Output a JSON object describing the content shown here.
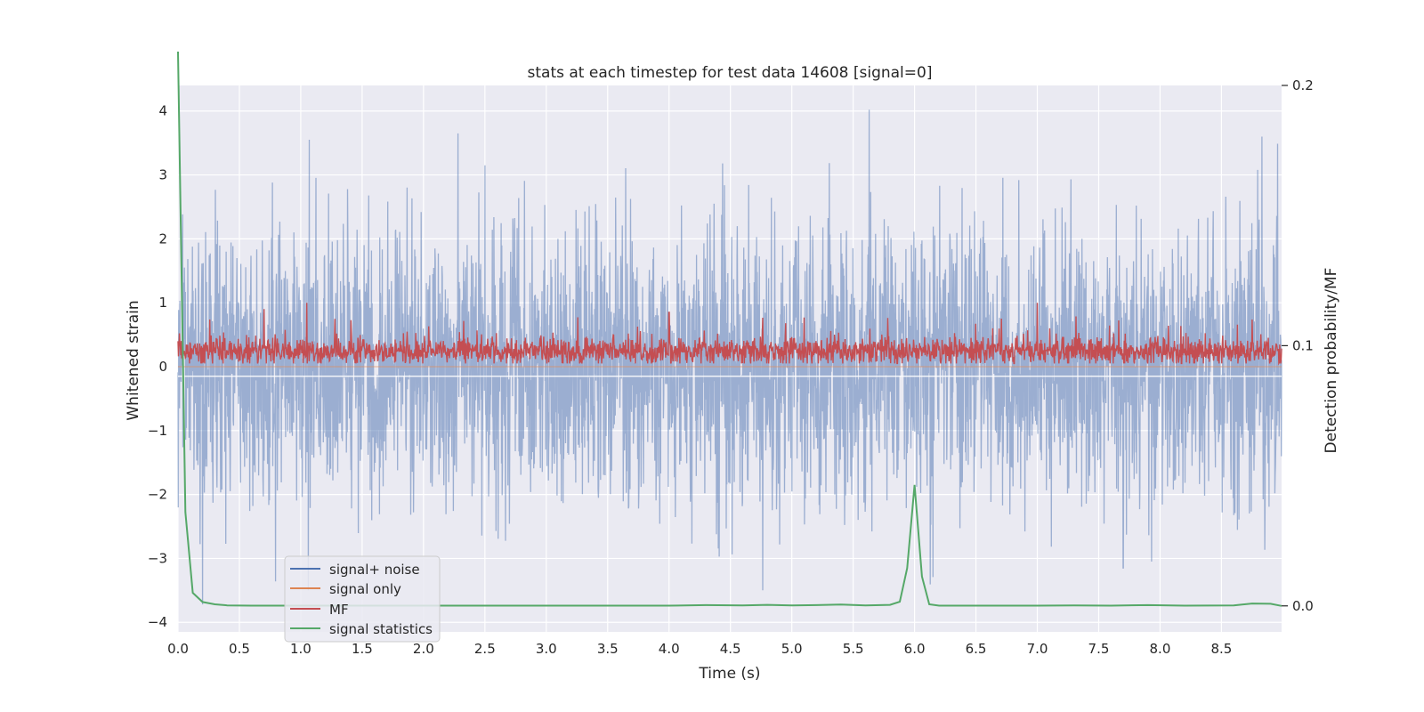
{
  "chart_data": {
    "type": "line",
    "title": "stats at each timestep for test data 14608 [signal=0]",
    "xlabel": "Time (s)",
    "ylabel_left": "Whitened strain",
    "ylabel_right": "Detection probability/MF",
    "xlim": [
      0.0,
      8.99
    ],
    "ylim_left": [
      -4.15,
      4.4
    ],
    "ylim_right": [
      -0.01,
      0.2
    ],
    "x_ticks": [
      "0.0",
      "0.5",
      "1.0",
      "1.5",
      "2.0",
      "2.5",
      "3.0",
      "3.5",
      "4.0",
      "4.5",
      "5.0",
      "5.5",
      "6.0",
      "6.5",
      "7.0",
      "7.5",
      "8.0",
      "8.5"
    ],
    "y_ticks_left": [
      "4",
      "3",
      "2",
      "1",
      "0",
      "−1",
      "−2",
      "−3",
      "−4"
    ],
    "y_ticks_right": [
      "0.2",
      "0.1",
      "0.0"
    ],
    "legend_position": "lower-left",
    "colors": {
      "plot_bg": "#eaeaf2",
      "grid": "#ffffff",
      "signal_noise": "#4c72b0",
      "signal_only": "#dd8452",
      "mf": "#c44e52",
      "stats": "#55a868"
    },
    "series": [
      {
        "name": "signal+ noise",
        "description_values": "whitened strain noise, approx. standard normal, range about -3.7 to 4.0",
        "peaks": [
          {
            "t": 1.07,
            "v": 3.55
          },
          {
            "t": 2.28,
            "v": 3.65
          },
          {
            "t": 2.5,
            "v": 3.15
          },
          {
            "t": 5.63,
            "v": 4.02
          },
          {
            "t": 8.83,
            "v": 3.6
          },
          {
            "t": 0.2,
            "v": -3.72
          },
          {
            "t": 7.7,
            "v": -3.15
          },
          {
            "t": 7.93,
            "v": -3.05
          }
        ]
      },
      {
        "name": "signal only",
        "values_note": "zero (no injected signal)"
      },
      {
        "name": "MF",
        "baseline_range": [
          0.05,
          0.5
        ],
        "peaks": [
          {
            "t": 0.7,
            "v": 0.9
          },
          {
            "t": 1.05,
            "v": 1.0
          },
          {
            "t": 4.0,
            "v": 0.85
          },
          {
            "t": 7.0,
            "v": 1.0
          }
        ]
      },
      {
        "name": "signal statistics",
        "axis": "right",
        "x": [
          0.0,
          0.06,
          0.12,
          0.2,
          0.3,
          0.4,
          0.6,
          1.0,
          2.0,
          3.0,
          4.0,
          4.3,
          4.6,
          4.8,
          5.0,
          5.2,
          5.4,
          5.6,
          5.8,
          5.88,
          5.94,
          6.0,
          6.06,
          6.12,
          6.2,
          6.5,
          7.0,
          7.3,
          7.6,
          7.9,
          8.2,
          8.6,
          8.75,
          8.9,
          8.99
        ],
        "values": [
          0.213,
          0.036,
          0.005,
          0.0015,
          0.0006,
          0.0002,
          0.0001,
          0.0001,
          0.0001,
          0.0001,
          0.0001,
          0.0003,
          0.0002,
          0.0004,
          0.0002,
          0.0003,
          0.0005,
          0.0002,
          0.0004,
          0.0016,
          0.0145,
          0.0465,
          0.0113,
          0.0006,
          0.0001,
          0.0001,
          0.0001,
          0.0002,
          0.0001,
          0.0003,
          0.0001,
          0.0002,
          0.0009,
          0.0008,
          0.0
        ]
      }
    ]
  }
}
